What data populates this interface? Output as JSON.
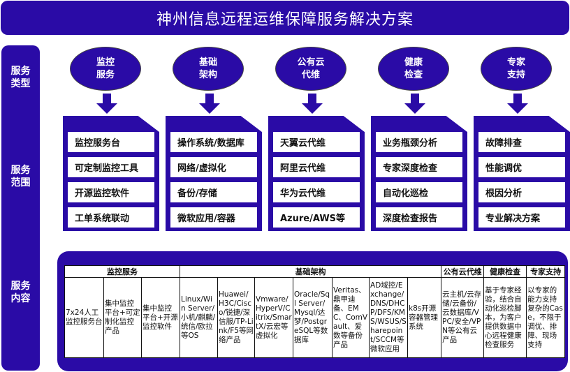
{
  "title": "神州信息远程运维保障服务解决方案",
  "sidebar": {
    "type_label": "服务\n类型",
    "scope_label": "服务\n范围",
    "content_label": "服务\n内容"
  },
  "columns": [
    {
      "name": "监控\n服务",
      "items": [
        "监控服务台",
        "可定制监控工具",
        "开源监控软件",
        "工单系统联动"
      ]
    },
    {
      "name": "基础\n架构",
      "items": [
        "操作系统/数据库",
        "网络/虚拟化",
        "备份/存储",
        "微软应用/容器"
      ]
    },
    {
      "name": "公有云\n代维",
      "items": [
        "天翼云代维",
        "阿里云代维",
        "华为云代维",
        "Azure/AWS等"
      ]
    },
    {
      "name": "健康\n检查",
      "items": [
        "业务瓶颈分析",
        "专家深度检查",
        "自动化巡检",
        "深度检查报告"
      ]
    },
    {
      "name": "专家\n支持",
      "items": [
        "故障排查",
        "性能调优",
        "根因分析",
        "专业解决方案"
      ]
    }
  ],
  "table": {
    "headers": [
      "监控服务",
      "基础架构",
      "公有云代维",
      "健康检查",
      "专家支持"
    ],
    "cells": [
      "7x24人工监控服务台",
      "集中监控平台+可定制化监控产品",
      "集中监控平台+开源监控软件",
      "Linux/Win Server/小机/麒麟/统信/欧拉等OS",
      "Huawei/H3C/Cisco/锐捷/深信服/TP-Link/F5等网络产品",
      "Vmware/HyperV/Citrix/SmartX/云宏等虚拟化",
      "Oracle/Sql Server/Mysql/达梦/PostgreSQL等数据库",
      "Veritas、鼎甲迪备、EMC、ComVault、爱数等备份产品",
      "AD域控/Exchange/DNS/DHCP/DFS/KMS/WSUS/Sharepoint/SCCM等微软应用",
      "k8s开源容器管理系统",
      "云主机/云存储/云备份/云数据库/VPC/安全/VPN等公有云产品",
      "基于专家经验，结合自动化巡检脚本，为客户提供数据中心远程健康检查服务",
      "以专家的能力支持复杂的Case，不限于调优、排障、现场支持"
    ]
  },
  "colors": {
    "primary": "#2a0ba6"
  }
}
